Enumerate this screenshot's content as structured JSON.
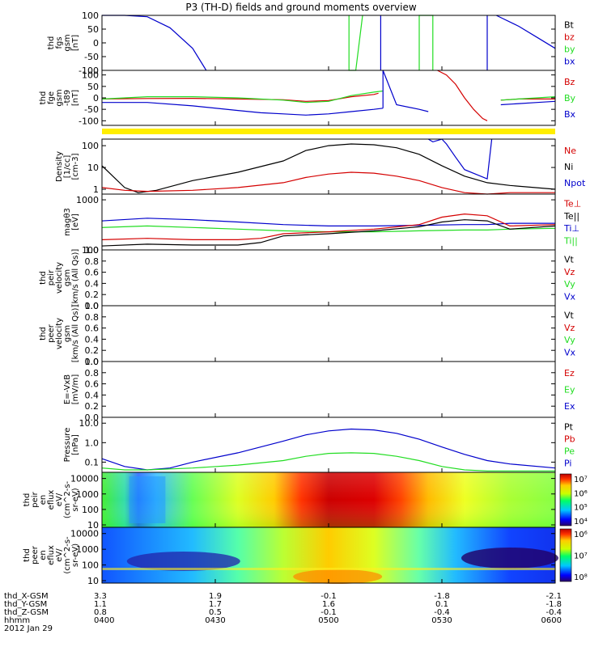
{
  "title": "P3 (TH-D) fields and ground moments overview",
  "colors": {
    "black": "#000000",
    "red": "#d40000",
    "green": "#22dd22",
    "blue": "#0000cc",
    "yellow": "#ffee00"
  },
  "chart_data": {
    "type": "line",
    "time_axis": {
      "ticks": [
        "0400",
        "0430",
        "0500",
        "0530",
        "0600"
      ],
      "rows": [
        {
          "label": "thd_X-GSM",
          "values": [
            "3.3",
            "1.9",
            "-0.1",
            "-1.8",
            "-2.1"
          ]
        },
        {
          "label": "thd_Y-GSM",
          "values": [
            "1.1",
            "1.7",
            "1.6",
            "0.1",
            "-1.8"
          ]
        },
        {
          "label": "thd_Z-GSM",
          "values": [
            "0.8",
            "0.5",
            "-0.1",
            "-0.4",
            "-0.4"
          ]
        },
        {
          "label": "hhmm",
          "values": [
            "0400",
            "0430",
            "0500",
            "0530",
            "0600"
          ]
        }
      ],
      "date": "2012 Jan 29"
    },
    "panels": [
      {
        "id": "fgs",
        "ylabel": [
          "thd",
          "fgs",
          "gsm",
          "[nT]"
        ],
        "yscale": "linear",
        "ylim": [
          -100,
          100
        ],
        "yticks": [
          "100",
          "50",
          "0",
          "-50",
          "-100"
        ],
        "ytick_values": [
          100,
          50,
          0,
          -50,
          -100
        ],
        "legend": [
          {
            "label": "Bt",
            "color": "black"
          },
          {
            "label": "bz",
            "color": "red"
          },
          {
            "label": "by",
            "color": "green"
          },
          {
            "label": "bx",
            "color": "blue"
          }
        ],
        "series": [
          {
            "name": "bx",
            "color": "blue",
            "x": [
              0,
              0.05,
              0.1,
              0.15,
              0.2,
              0.23
            ],
            "y": [
              130,
              118,
              95,
              55,
              -20,
              -100
            ]
          },
          {
            "name": "by",
            "color": "green",
            "x": [
              0.545,
              0.545,
              0.56,
              0.575,
              0.575
            ],
            "y": [
              100,
              -100,
              -100,
              100,
              100
            ]
          },
          {
            "name": "by-b",
            "color": "green",
            "x": [
              0.7,
              0.7,
              0.73,
              0.73
            ],
            "y": [
              -100,
              100,
              100,
              -100
            ]
          },
          {
            "name": "bx-b",
            "color": "blue",
            "x": [
              0.615,
              0.615
            ],
            "y": [
              100,
              -100
            ]
          },
          {
            "name": "bx-c",
            "color": "blue",
            "x": [
              0.85,
              0.85
            ],
            "y": [
              100,
              -100
            ]
          },
          {
            "name": "bx-d",
            "color": "blue",
            "x": [
              0.87,
              0.92,
              0.96,
              1.0
            ],
            "y": [
              100,
              60,
              20,
              -20
            ]
          }
        ]
      },
      {
        "id": "fge",
        "ylabel": [
          "thd",
          "fge",
          "gsm",
          "-t89",
          "[nT]"
        ],
        "yscale": "linear",
        "ylim": [
          -120,
          120
        ],
        "yticks": [
          "100",
          "50",
          "0",
          "-50",
          "-100"
        ],
        "ytick_values": [
          100,
          50,
          0,
          -50,
          -100
        ],
        "legend": [
          {
            "label": "Bz",
            "color": "red"
          },
          {
            "label": "By",
            "color": "green"
          },
          {
            "label": "Bx",
            "color": "blue"
          }
        ],
        "series": [
          {
            "name": "Bz",
            "color": "red",
            "x": [
              0,
              0.1,
              0.2,
              0.3,
              0.4,
              0.45,
              0.5,
              0.55,
              0.6,
              0.61
            ],
            "y": [
              -5,
              -3,
              -2,
              -5,
              -8,
              -15,
              -12,
              5,
              15,
              20
            ]
          },
          {
            "name": "Bz-b",
            "color": "red",
            "x": [
              0.74,
              0.76,
              0.78,
              0.8,
              0.82,
              0.84,
              0.85
            ],
            "y": [
              120,
              100,
              60,
              0,
              -50,
              -90,
              -100
            ]
          },
          {
            "name": "Bz-c",
            "color": "red",
            "x": [
              0.88,
              0.92,
              1.0
            ],
            "y": [
              -10,
              -5,
              -5
            ]
          },
          {
            "name": "By",
            "color": "green",
            "x": [
              0,
              0.1,
              0.2,
              0.3,
              0.4,
              0.45,
              0.5,
              0.55,
              0.6,
              0.62
            ],
            "y": [
              -5,
              5,
              5,
              0,
              -10,
              -20,
              -15,
              10,
              25,
              30
            ]
          },
          {
            "name": "By-b",
            "color": "green",
            "x": [
              0.88,
              0.92,
              1.0
            ],
            "y": [
              -10,
              -5,
              5
            ]
          },
          {
            "name": "Bx",
            "color": "blue",
            "x": [
              0,
              0.1,
              0.2,
              0.3,
              0.35,
              0.4,
              0.45,
              0.5,
              0.55,
              0.6,
              0.62
            ],
            "y": [
              -20,
              -20,
              -35,
              -55,
              -65,
              -70,
              -75,
              -70,
              -60,
              -50,
              -45
            ]
          },
          {
            "name": "Bx-b",
            "color": "blue",
            "x": [
              0.62,
              0.62,
              0.65,
              0.7,
              0.72
            ],
            "y": [
              -45,
              120,
              -30,
              -50,
              -60
            ]
          },
          {
            "name": "Bx-c",
            "color": "blue",
            "x": [
              0.88,
              0.92,
              0.96,
              1.0
            ],
            "y": [
              -30,
              -25,
              -20,
              -15
            ]
          }
        ]
      },
      {
        "id": "density",
        "ylabel": [
          "Density",
          "[1/cc]",
          "[cm-3]"
        ],
        "yscale": "log",
        "ylim": [
          0.6,
          200
        ],
        "yticks": [
          "100",
          "10",
          "1"
        ],
        "ytick_values": [
          100,
          10,
          1
        ],
        "legend": [
          {
            "label": "Ne",
            "color": "red"
          },
          {
            "label": "Ni",
            "color": "black"
          },
          {
            "label": "Npot",
            "color": "blue"
          }
        ],
        "series": [
          {
            "name": "Ni",
            "color": "black",
            "x": [
              0,
              0.05,
              0.08,
              0.12,
              0.2,
              0.3,
              0.4,
              0.45,
              0.5,
              0.55,
              0.6,
              0.65,
              0.7,
              0.75,
              0.8,
              0.85,
              0.9,
              1.0
            ],
            "y": [
              12,
              1.2,
              0.7,
              0.9,
              2.5,
              6,
              20,
              60,
              100,
              120,
              110,
              80,
              40,
              12,
              4,
              2,
              1.5,
              1.0
            ]
          },
          {
            "name": "Ne",
            "color": "red",
            "x": [
              0,
              0.05,
              0.1,
              0.2,
              0.3,
              0.4,
              0.45,
              0.5,
              0.55,
              0.6,
              0.65,
              0.7,
              0.75,
              0.8,
              0.85,
              0.9,
              1.0
            ],
            "y": [
              1.2,
              0.9,
              0.8,
              0.9,
              1.2,
              2,
              3.5,
              5,
              6,
              5.5,
              4,
              2.5,
              1.2,
              0.7,
              0.6,
              0.7,
              0.7
            ]
          },
          {
            "name": "Npot",
            "color": "blue",
            "x": [
              0.72,
              0.73,
              0.75,
              0.76,
              0.78,
              0.8,
              0.85,
              0.86
            ],
            "y": [
              200,
              150,
              200,
              120,
              30,
              8,
              3,
              200
            ]
          }
        ]
      },
      {
        "id": "temp",
        "ylabel": [
          "magθ3",
          "[eV]"
        ],
        "yscale": "log",
        "ylim": [
          100,
          1300
        ],
        "yticks": [
          "1000",
          "100"
        ],
        "ytick_values": [
          1000,
          100
        ],
        "legend": [
          {
            "label": "Te⊥",
            "color": "red"
          },
          {
            "label": "Te||",
            "color": "black"
          },
          {
            "label": "Ti⊥",
            "color": "blue"
          },
          {
            "label": "Ti||",
            "color": "green"
          }
        ],
        "series": [
          {
            "name": "Ti_perp",
            "color": "blue",
            "x": [
              0,
              0.1,
              0.2,
              0.3,
              0.4,
              0.5,
              0.6,
              0.7,
              0.8,
              0.85,
              0.9,
              1.0
            ],
            "y": [
              380,
              430,
              400,
              360,
              320,
              300,
              300,
              310,
              320,
              320,
              340,
              340
            ]
          },
          {
            "name": "Ti_par",
            "color": "green",
            "x": [
              0,
              0.1,
              0.2,
              0.3,
              0.4,
              0.5,
              0.6,
              0.7,
              0.8,
              0.85,
              0.9,
              1.0
            ],
            "y": [
              280,
              300,
              280,
              260,
              240,
              230,
              230,
              240,
              250,
              250,
              260,
              270
            ]
          },
          {
            "name": "Te_perp",
            "color": "red",
            "x": [
              0,
              0.1,
              0.2,
              0.3,
              0.35,
              0.4,
              0.5,
              0.6,
              0.7,
              0.75,
              0.8,
              0.85,
              0.9,
              1.0
            ],
            "y": [
              160,
              170,
              160,
              160,
              170,
              210,
              230,
              260,
              320,
              450,
              520,
              480,
              300,
              320
            ]
          },
          {
            "name": "Te_par",
            "color": "black",
            "x": [
              0,
              0.1,
              0.2,
              0.3,
              0.35,
              0.4,
              0.5,
              0.6,
              0.7,
              0.75,
              0.8,
              0.85,
              0.9,
              1.0
            ],
            "y": [
              120,
              130,
              125,
              125,
              140,
              190,
              210,
              240,
              290,
              360,
              400,
              380,
              260,
              300
            ]
          }
        ]
      },
      {
        "id": "vpeir",
        "ylabel": [
          "thd",
          "peir",
          "velocity",
          "gsm",
          "[km/s (All Qs)]"
        ],
        "yscale": "linear",
        "ylim": [
          0,
          1
        ],
        "yticks": [
          "1.0",
          "0.8",
          "0.6",
          "0.4",
          "0.2",
          "0.0"
        ],
        "ytick_values": [
          1,
          0.8,
          0.6,
          0.4,
          0.2,
          0
        ],
        "legend": [
          {
            "label": "Vt",
            "color": "black"
          },
          {
            "label": "Vz",
            "color": "red"
          },
          {
            "label": "Vy",
            "color": "green"
          },
          {
            "label": "Vx",
            "color": "blue"
          }
        ],
        "series": []
      },
      {
        "id": "vpeer",
        "ylabel": [
          "thd",
          "peer",
          "velocity",
          "gsm",
          "[km/s (All Qs)]"
        ],
        "yscale": "linear",
        "ylim": [
          0,
          1
        ],
        "yticks": [
          "1.0",
          "0.8",
          "0.6",
          "0.4",
          "0.2",
          "0.0"
        ],
        "ytick_values": [
          1,
          0.8,
          0.6,
          0.4,
          0.2,
          0
        ],
        "legend": [
          {
            "label": "Vt",
            "color": "black"
          },
          {
            "label": "Vz",
            "color": "red"
          },
          {
            "label": "Vy",
            "color": "green"
          },
          {
            "label": "Vx",
            "color": "blue"
          }
        ],
        "series": []
      },
      {
        "id": "efield",
        "ylabel": [
          "E=-VxB",
          "[mV/m]"
        ],
        "yscale": "linear",
        "ylim": [
          0,
          1
        ],
        "yticks": [
          "1.0",
          "0.8",
          "0.6",
          "0.4",
          "0.2",
          "0.0"
        ],
        "ytick_values": [
          1,
          0.8,
          0.6,
          0.4,
          0.2,
          0
        ],
        "legend": [
          {
            "label": "Ez",
            "color": "red"
          },
          {
            "label": "Ey",
            "color": "green"
          },
          {
            "label": "Ex",
            "color": "blue"
          }
        ],
        "series": []
      },
      {
        "id": "pressure",
        "ylabel": [
          "Pressure",
          "[nPa]"
        ],
        "yscale": "log",
        "ylim": [
          0.03,
          20
        ],
        "yticks": [
          "10.0",
          "1.0",
          "0.1"
        ],
        "ytick_values": [
          10,
          1,
          0.1
        ],
        "legend": [
          {
            "label": "Pt",
            "color": "black"
          },
          {
            "label": "Pb",
            "color": "red"
          },
          {
            "label": "Pe",
            "color": "green"
          },
          {
            "label": "Pi",
            "color": "blue"
          }
        ],
        "series": [
          {
            "name": "Pi",
            "color": "blue",
            "x": [
              0,
              0.05,
              0.1,
              0.15,
              0.2,
              0.3,
              0.4,
              0.45,
              0.5,
              0.55,
              0.6,
              0.65,
              0.7,
              0.75,
              0.8,
              0.85,
              0.9,
              1.0
            ],
            "y": [
              0.15,
              0.06,
              0.04,
              0.05,
              0.1,
              0.3,
              1.2,
              2.5,
              4,
              5,
              4.5,
              3,
              1.5,
              0.6,
              0.25,
              0.12,
              0.08,
              0.05
            ]
          },
          {
            "name": "Pe",
            "color": "green",
            "x": [
              0,
              0.05,
              0.1,
              0.2,
              0.3,
              0.4,
              0.45,
              0.5,
              0.55,
              0.6,
              0.65,
              0.7,
              0.75,
              0.8,
              0.85,
              0.9,
              1.0
            ],
            "y": [
              0.05,
              0.04,
              0.04,
              0.05,
              0.07,
              0.12,
              0.2,
              0.28,
              0.3,
              0.28,
              0.2,
              0.12,
              0.06,
              0.04,
              0.035,
              0.035,
              0.035
            ]
          }
        ]
      },
      {
        "id": "ieflux",
        "type": "heatmap",
        "ylabel": [
          "thd",
          "peir",
          "en",
          "eflux",
          "eV/",
          "(cm^2-s-",
          "sr-eV)"
        ],
        "yscale": "log",
        "ylim": [
          7,
          25000
        ],
        "yticks": [
          "10000",
          "1000",
          "100",
          "10"
        ],
        "ytick_values": [
          10000,
          1000,
          100,
          10
        ],
        "colorbar": {
          "labels": [
            "10⁷",
            "10⁶",
            "10⁵",
            "10⁴"
          ]
        }
      },
      {
        "id": "eeflux",
        "type": "heatmap",
        "ylabel": [
          "thd",
          "peer",
          "en",
          "eflux",
          "eV/",
          "(cm^2-s-",
          "sr-eV)"
        ],
        "yscale": "log",
        "ylim": [
          7,
          25000
        ],
        "yticks": [
          "10000",
          "1000",
          "100",
          "10"
        ],
        "ytick_values": [
          10000,
          1000,
          100,
          10
        ],
        "colorbar": {
          "labels": [
            "10⁶",
            "10⁷",
            "10⁸"
          ]
        }
      }
    ]
  }
}
